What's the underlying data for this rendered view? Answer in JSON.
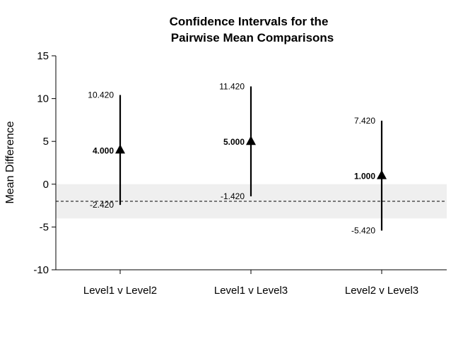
{
  "chart_data": {
    "type": "errorbar",
    "title_lines": [
      "Confidence Intervals for the",
      "Pairwise Mean Comparisons"
    ],
    "ylabel": "Mean Difference",
    "xlabel": "",
    "ylim": [
      -10,
      15
    ],
    "yticks": [
      15,
      10,
      5,
      0,
      -5,
      -10
    ],
    "categories": [
      "Level1 v Level2",
      "Level1 v Level3",
      "Level2 v Level3"
    ],
    "estimates": [
      4.0,
      5.0,
      1.0
    ],
    "lower": [
      -2.42,
      -1.42,
      -5.42
    ],
    "upper": [
      10.42,
      11.42,
      7.42
    ],
    "estimate_labels": [
      "4.000",
      "5.000",
      "1.000"
    ],
    "lower_labels": [
      "-2.420",
      "-1.420",
      "-5.420"
    ],
    "upper_labels": [
      "10.420",
      "11.420",
      "7.420"
    ],
    "reference_line": -2,
    "shaded_band": [
      -4,
      0
    ],
    "band_color": "#efefef"
  }
}
